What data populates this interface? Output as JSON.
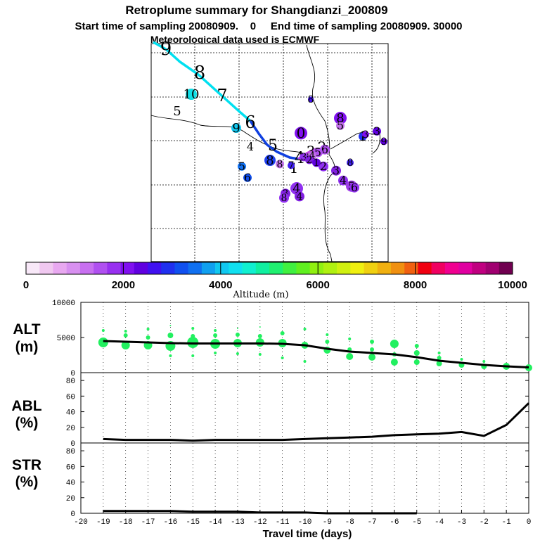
{
  "title": "Retroplume summary for Shangdianzi_200809",
  "subtitle": "Start time of sampling 20080909.    0     End time of sampling 20080909. 30000",
  "met_line": "Meteorological data used is ECMWF",
  "colorbar": {
    "label": "Altitude (m)",
    "ticks": [
      "0",
      "2000",
      "4000",
      "6000",
      "8000",
      "10000"
    ],
    "colors": [
      "#f8e8f8",
      "#f0c8f0",
      "#e8a8f0",
      "#d890f0",
      "#c870f0",
      "#b050f0",
      "#9830f0",
      "#8010f0",
      "#6000e0",
      "#4010f0",
      "#2030f0",
      "#1050f0",
      "#1070f0",
      "#10a0f0",
      "#10c8f0",
      "#10e0f0",
      "#10f0d0",
      "#10f0a0",
      "#20f070",
      "#40f040",
      "#60f020",
      "#90f010",
      "#b0f010",
      "#d0f010",
      "#f0f010",
      "#f0d010",
      "#f0b010",
      "#f09010",
      "#f06010",
      "#f00010",
      "#f00060",
      "#f00090",
      "#e000a0",
      "#c00080",
      "#a00070",
      "#700050"
    ]
  },
  "map": {
    "track_labels": [
      "9",
      "8",
      "7",
      "6",
      "5",
      "4",
      "3",
      "2",
      "1",
      "10",
      "5",
      "9",
      "4",
      "5",
      "8",
      "6",
      "0",
      "8",
      "5",
      "2",
      "3",
      "4",
      "5",
      "6",
      "4",
      "3",
      "8",
      "1",
      "3",
      "8",
      "9",
      "8",
      "7",
      "6",
      "5",
      "4",
      "3",
      "2",
      "1",
      "3",
      "8",
      "4"
    ],
    "colors": {
      "track_light": "#00e0f0",
      "track_dark": "#1040e0",
      "track_purple": "#c040e0"
    }
  },
  "panels": {
    "alt": "ALT",
    "alt_unit": "(m)",
    "abl": "ABL",
    "abl_unit": "(%)",
    "str": "STR",
    "str_unit": "(%)"
  },
  "x_label": "Travel time (days)",
  "chart_data": {
    "type": "line",
    "x_label": "Travel time (days)",
    "x_ticks": [
      -20,
      -19,
      -18,
      -17,
      -16,
      -15,
      -14,
      -13,
      -12,
      -11,
      -10,
      -9,
      -8,
      -7,
      -6,
      -5,
      -4,
      -3,
      -2,
      -1,
      0
    ],
    "xlim": [
      -20,
      0
    ],
    "alt": {
      "ylim": [
        0,
        10000
      ],
      "y_ticks": [
        0,
        5000,
        10000
      ],
      "mean_line": {
        "x": [
          -19,
          -18,
          -17,
          -16,
          -15,
          -14,
          -13,
          -12,
          -11,
          -10,
          -9,
          -8,
          -7,
          -6,
          -5,
          -4,
          -3,
          -2,
          -1,
          0
        ],
        "y": [
          4500,
          4400,
          4300,
          4200,
          4150,
          4150,
          4150,
          4150,
          4100,
          3900,
          3400,
          3000,
          2800,
          2600,
          2200,
          1700,
          1400,
          1100,
          900,
          750
        ]
      },
      "particle_clusters": [
        {
          "x": -19,
          "y": 4300,
          "s": 7
        },
        {
          "x": -19,
          "y": 6000,
          "s": 2
        },
        {
          "x": -18,
          "y": 3900,
          "s": 6
        },
        {
          "x": -18,
          "y": 5300,
          "s": 3
        },
        {
          "x": -18,
          "y": 5900,
          "s": 2
        },
        {
          "x": -17,
          "y": 3900,
          "s": 6
        },
        {
          "x": -17,
          "y": 5000,
          "s": 3
        },
        {
          "x": -17,
          "y": 6200,
          "s": 2
        },
        {
          "x": -16,
          "y": 3800,
          "s": 7
        },
        {
          "x": -16,
          "y": 5300,
          "s": 4
        },
        {
          "x": -16,
          "y": 2400,
          "s": 2
        },
        {
          "x": -16,
          "y": 6700,
          "s": 1
        },
        {
          "x": -15,
          "y": 4300,
          "s": 8
        },
        {
          "x": -15,
          "y": 5200,
          "s": 3
        },
        {
          "x": -15,
          "y": 2400,
          "s": 2
        },
        {
          "x": -15,
          "y": 6300,
          "s": 2
        },
        {
          "x": -14,
          "y": 4100,
          "s": 7
        },
        {
          "x": -14,
          "y": 5300,
          "s": 3
        },
        {
          "x": -14,
          "y": 2800,
          "s": 2
        },
        {
          "x": -14,
          "y": 6000,
          "s": 2
        },
        {
          "x": -13,
          "y": 4200,
          "s": 6
        },
        {
          "x": -13,
          "y": 5400,
          "s": 3
        },
        {
          "x": -13,
          "y": 2700,
          "s": 2
        },
        {
          "x": -13,
          "y": 6300,
          "s": 1
        },
        {
          "x": -12,
          "y": 4300,
          "s": 6
        },
        {
          "x": -12,
          "y": 5200,
          "s": 3
        },
        {
          "x": -12,
          "y": 2600,
          "s": 2
        },
        {
          "x": -12,
          "y": 6500,
          "s": 1
        },
        {
          "x": -11,
          "y": 4200,
          "s": 6
        },
        {
          "x": -11,
          "y": 5600,
          "s": 3
        },
        {
          "x": -11,
          "y": 2100,
          "s": 2
        },
        {
          "x": -10,
          "y": 3900,
          "s": 5
        },
        {
          "x": -10,
          "y": 6200,
          "s": 2
        },
        {
          "x": -10,
          "y": 1600,
          "s": 2
        },
        {
          "x": -9,
          "y": 3200,
          "s": 5
        },
        {
          "x": -9,
          "y": 4400,
          "s": 3
        },
        {
          "x": -9,
          "y": 5400,
          "s": 2
        },
        {
          "x": -8,
          "y": 2300,
          "s": 5
        },
        {
          "x": -8,
          "y": 3300,
          "s": 3
        },
        {
          "x": -8,
          "y": 4800,
          "s": 2
        },
        {
          "x": -7,
          "y": 2200,
          "s": 5
        },
        {
          "x": -7,
          "y": 3300,
          "s": 3
        },
        {
          "x": -7,
          "y": 4400,
          "s": 3
        },
        {
          "x": -6,
          "y": 1500,
          "s": 5
        },
        {
          "x": -6,
          "y": 4100,
          "s": 6
        },
        {
          "x": -6,
          "y": 2600,
          "s": 3
        },
        {
          "x": -5,
          "y": 1500,
          "s": 4
        },
        {
          "x": -5,
          "y": 2800,
          "s": 4
        },
        {
          "x": -5,
          "y": 3800,
          "s": 3
        },
        {
          "x": -4,
          "y": 1300,
          "s": 4
        },
        {
          "x": -4,
          "y": 2100,
          "s": 3
        },
        {
          "x": -4,
          "y": 2800,
          "s": 2
        },
        {
          "x": -3,
          "y": 1100,
          "s": 4
        },
        {
          "x": -3,
          "y": 1900,
          "s": 2
        },
        {
          "x": -2,
          "y": 900,
          "s": 4
        },
        {
          "x": -2,
          "y": 1600,
          "s": 2
        },
        {
          "x": -1,
          "y": 900,
          "s": 5
        },
        {
          "x": 0,
          "y": 700,
          "s": 5
        }
      ]
    },
    "abl": {
      "ylim": [
        0,
        90
      ],
      "y_ticks": [
        0,
        20,
        40,
        60,
        80
      ],
      "x": [
        -19,
        -18,
        -17,
        -16,
        -15,
        -14,
        -13,
        -12,
        -11,
        -10,
        -9,
        -8,
        -7,
        -6,
        -5,
        -4,
        -3,
        -2,
        -1,
        0
      ],
      "y": [
        5,
        4,
        4,
        4,
        3,
        4,
        4,
        4,
        4,
        5,
        6,
        7,
        8,
        10,
        11,
        12,
        14,
        9,
        23,
        51
      ]
    },
    "str": {
      "ylim": [
        0,
        90
      ],
      "y_ticks": [
        0,
        20,
        40,
        60,
        80
      ],
      "x": [
        -19,
        -18,
        -17,
        -16,
        -15,
        -14,
        -13,
        -12,
        -11,
        -10,
        -9,
        -8,
        -7,
        -6,
        -5
      ],
      "y": [
        3,
        3,
        3,
        3,
        2,
        2,
        2,
        1,
        1,
        1,
        0,
        0,
        0,
        0,
        0
      ]
    }
  }
}
